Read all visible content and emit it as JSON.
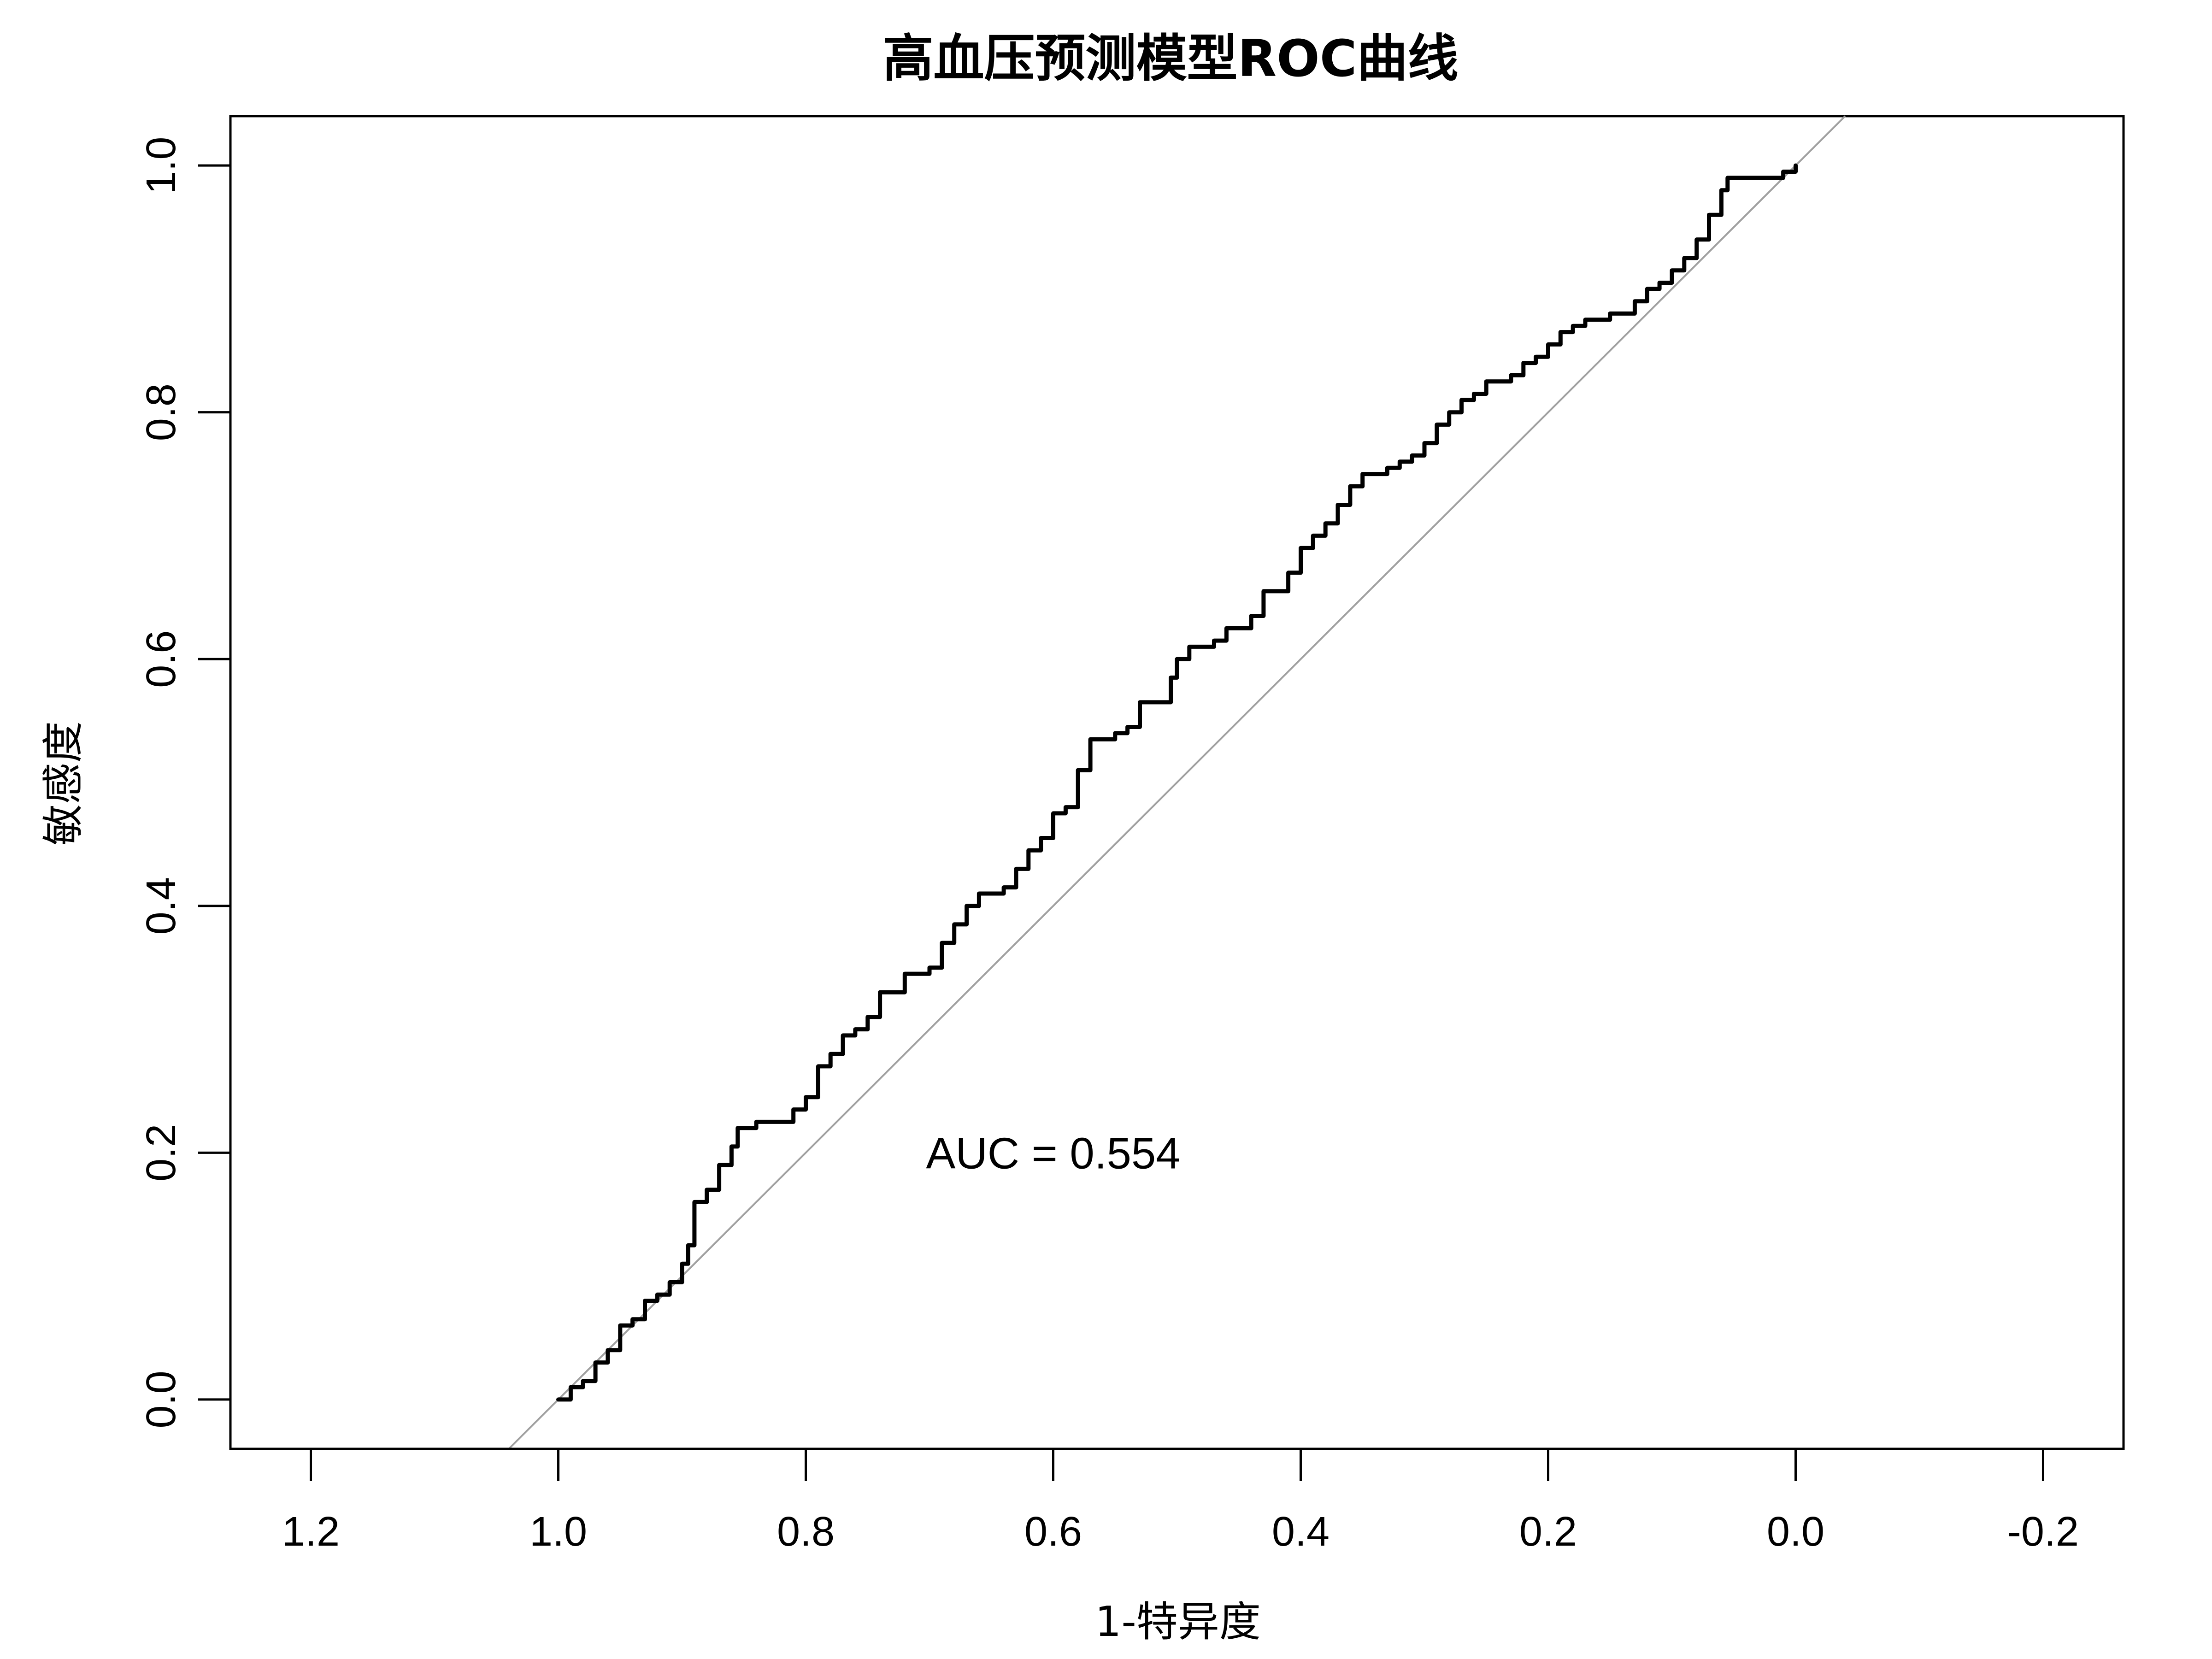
{
  "chart_data": {
    "type": "line",
    "title": "高血压预测模型ROC曲线",
    "xlabel": "1-特异度",
    "ylabel": "敏感度",
    "x_reversed": true,
    "xlim": [
      1.265,
      -0.265
    ],
    "ylim": [
      -0.04,
      1.04
    ],
    "x_ticks": [
      1.2,
      1.0,
      0.8,
      0.6,
      0.4,
      0.2,
      0.0,
      -0.2
    ],
    "x_tick_labels": [
      "1.2",
      "1.0",
      "0.8",
      "0.6",
      "0.4",
      "0.2",
      "0.0",
      "-0.2"
    ],
    "y_ticks": [
      0.0,
      0.2,
      0.4,
      0.6,
      0.8,
      1.0
    ],
    "y_tick_labels": [
      "0.0",
      "0.2",
      "0.4",
      "0.6",
      "0.8",
      "1.0"
    ],
    "grid": false,
    "legend": "none",
    "annotation": {
      "text": "AUC = 0.554",
      "x": 0.6,
      "y": 0.2
    },
    "reference_line": {
      "points": [
        [
          1.04,
          -0.04
        ],
        [
          -0.04,
          1.04
        ]
      ],
      "color": "#a0a0a0"
    },
    "series": [
      {
        "color": "#000000",
        "points": [
          [
            1.0,
            0.0
          ],
          [
            0.99,
            0.01
          ],
          [
            0.98,
            0.015
          ],
          [
            0.97,
            0.03
          ],
          [
            0.96,
            0.04
          ],
          [
            0.95,
            0.06
          ],
          [
            0.94,
            0.065
          ],
          [
            0.93,
            0.08
          ],
          [
            0.92,
            0.085
          ],
          [
            0.91,
            0.095
          ],
          [
            0.9,
            0.11
          ],
          [
            0.895,
            0.125
          ],
          [
            0.89,
            0.16
          ],
          [
            0.88,
            0.17
          ],
          [
            0.87,
            0.19
          ],
          [
            0.86,
            0.205
          ],
          [
            0.855,
            0.22
          ],
          [
            0.84,
            0.225
          ],
          [
            0.82,
            0.225
          ],
          [
            0.81,
            0.235
          ],
          [
            0.8,
            0.245
          ],
          [
            0.79,
            0.27
          ],
          [
            0.78,
            0.28
          ],
          [
            0.77,
            0.295
          ],
          [
            0.76,
            0.3
          ],
          [
            0.75,
            0.31
          ],
          [
            0.74,
            0.33
          ],
          [
            0.725,
            0.33
          ],
          [
            0.72,
            0.345
          ],
          [
            0.7,
            0.35
          ],
          [
            0.69,
            0.37
          ],
          [
            0.68,
            0.385
          ],
          [
            0.67,
            0.4
          ],
          [
            0.66,
            0.41
          ],
          [
            0.64,
            0.415
          ],
          [
            0.63,
            0.43
          ],
          [
            0.62,
            0.445
          ],
          [
            0.61,
            0.455
          ],
          [
            0.6,
            0.475
          ],
          [
            0.59,
            0.48
          ],
          [
            0.58,
            0.51
          ],
          [
            0.57,
            0.535
          ],
          [
            0.55,
            0.54
          ],
          [
            0.54,
            0.545
          ],
          [
            0.53,
            0.565
          ],
          [
            0.51,
            0.565
          ],
          [
            0.505,
            0.585
          ],
          [
            0.5,
            0.6
          ],
          [
            0.49,
            0.61
          ],
          [
            0.47,
            0.615
          ],
          [
            0.46,
            0.625
          ],
          [
            0.44,
            0.635
          ],
          [
            0.43,
            0.655
          ],
          [
            0.41,
            0.67
          ],
          [
            0.4,
            0.69
          ],
          [
            0.39,
            0.7
          ],
          [
            0.38,
            0.71
          ],
          [
            0.37,
            0.725
          ],
          [
            0.36,
            0.74
          ],
          [
            0.35,
            0.75
          ],
          [
            0.33,
            0.755
          ],
          [
            0.32,
            0.76
          ],
          [
            0.31,
            0.765
          ],
          [
            0.3,
            0.775
          ],
          [
            0.29,
            0.79
          ],
          [
            0.28,
            0.8
          ],
          [
            0.27,
            0.81
          ],
          [
            0.26,
            0.815
          ],
          [
            0.25,
            0.825
          ],
          [
            0.23,
            0.83
          ],
          [
            0.22,
            0.84
          ],
          [
            0.21,
            0.845
          ],
          [
            0.2,
            0.855
          ],
          [
            0.19,
            0.865
          ],
          [
            0.18,
            0.87
          ],
          [
            0.17,
            0.875
          ],
          [
            0.15,
            0.88
          ],
          [
            0.13,
            0.89
          ],
          [
            0.12,
            0.9
          ],
          [
            0.11,
            0.905
          ],
          [
            0.1,
            0.915
          ],
          [
            0.09,
            0.925
          ],
          [
            0.08,
            0.94
          ],
          [
            0.07,
            0.96
          ],
          [
            0.06,
            0.98
          ],
          [
            0.055,
            0.99
          ],
          [
            0.05,
            0.99
          ],
          [
            0.04,
            0.99
          ],
          [
            0.02,
            0.99
          ],
          [
            0.01,
            0.995
          ],
          [
            0.0,
            1.0
          ]
        ]
      }
    ]
  }
}
